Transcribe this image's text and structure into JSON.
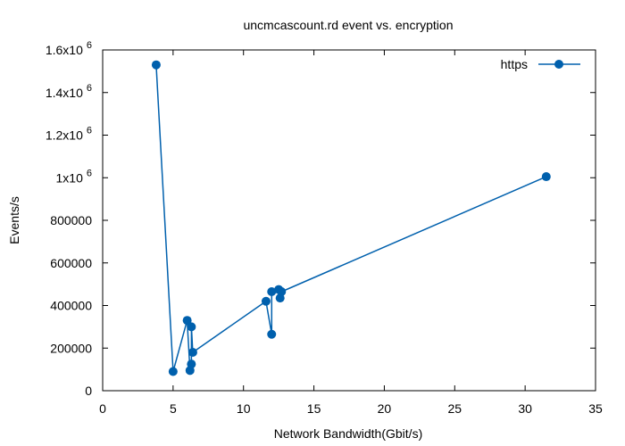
{
  "chart_data": {
    "type": "line",
    "title": "uncmcascount.rd event vs. encryption",
    "xlabel": "Network Bandwidth(Gbit/s)",
    "ylabel": "Events/s",
    "xlim": [
      0,
      35
    ],
    "ylim": [
      0,
      1600000
    ],
    "x_ticks": [
      0,
      5,
      10,
      15,
      20,
      25,
      30,
      35
    ],
    "x_tick_labels": [
      "0",
      "5",
      "10",
      "15",
      "20",
      "25",
      "30",
      "35"
    ],
    "y_ticks": [
      0,
      200000,
      400000,
      600000,
      800000,
      1000000,
      1200000,
      1400000,
      1600000
    ],
    "y_tick_labels": [
      {
        "base": "0",
        "exp": ""
      },
      {
        "base": "200000",
        "exp": ""
      },
      {
        "base": "400000",
        "exp": ""
      },
      {
        "base": "600000",
        "exp": ""
      },
      {
        "base": "800000",
        "exp": ""
      },
      {
        "base": "1x10",
        "exp": "6"
      },
      {
        "base": "1.2x10",
        "exp": "6"
      },
      {
        "base": "1.4x10",
        "exp": "6"
      },
      {
        "base": "1.6x10",
        "exp": "6"
      }
    ],
    "grid": false,
    "legend_position": "top-right",
    "series": [
      {
        "name": "https",
        "color": "#0060ad",
        "marker": "circle",
        "points": [
          [
            3.8,
            1530000
          ],
          [
            5.0,
            90000
          ],
          [
            6.0,
            330000
          ],
          [
            6.2,
            95000
          ],
          [
            6.3,
            125000
          ],
          [
            6.3,
            300000
          ],
          [
            6.4,
            180000
          ],
          [
            11.6,
            420000
          ],
          [
            12.0,
            265000
          ],
          [
            12.0,
            465000
          ],
          [
            12.5,
            475000
          ],
          [
            12.6,
            435000
          ],
          [
            12.7,
            465000
          ],
          [
            31.5,
            1005000
          ]
        ]
      }
    ]
  }
}
